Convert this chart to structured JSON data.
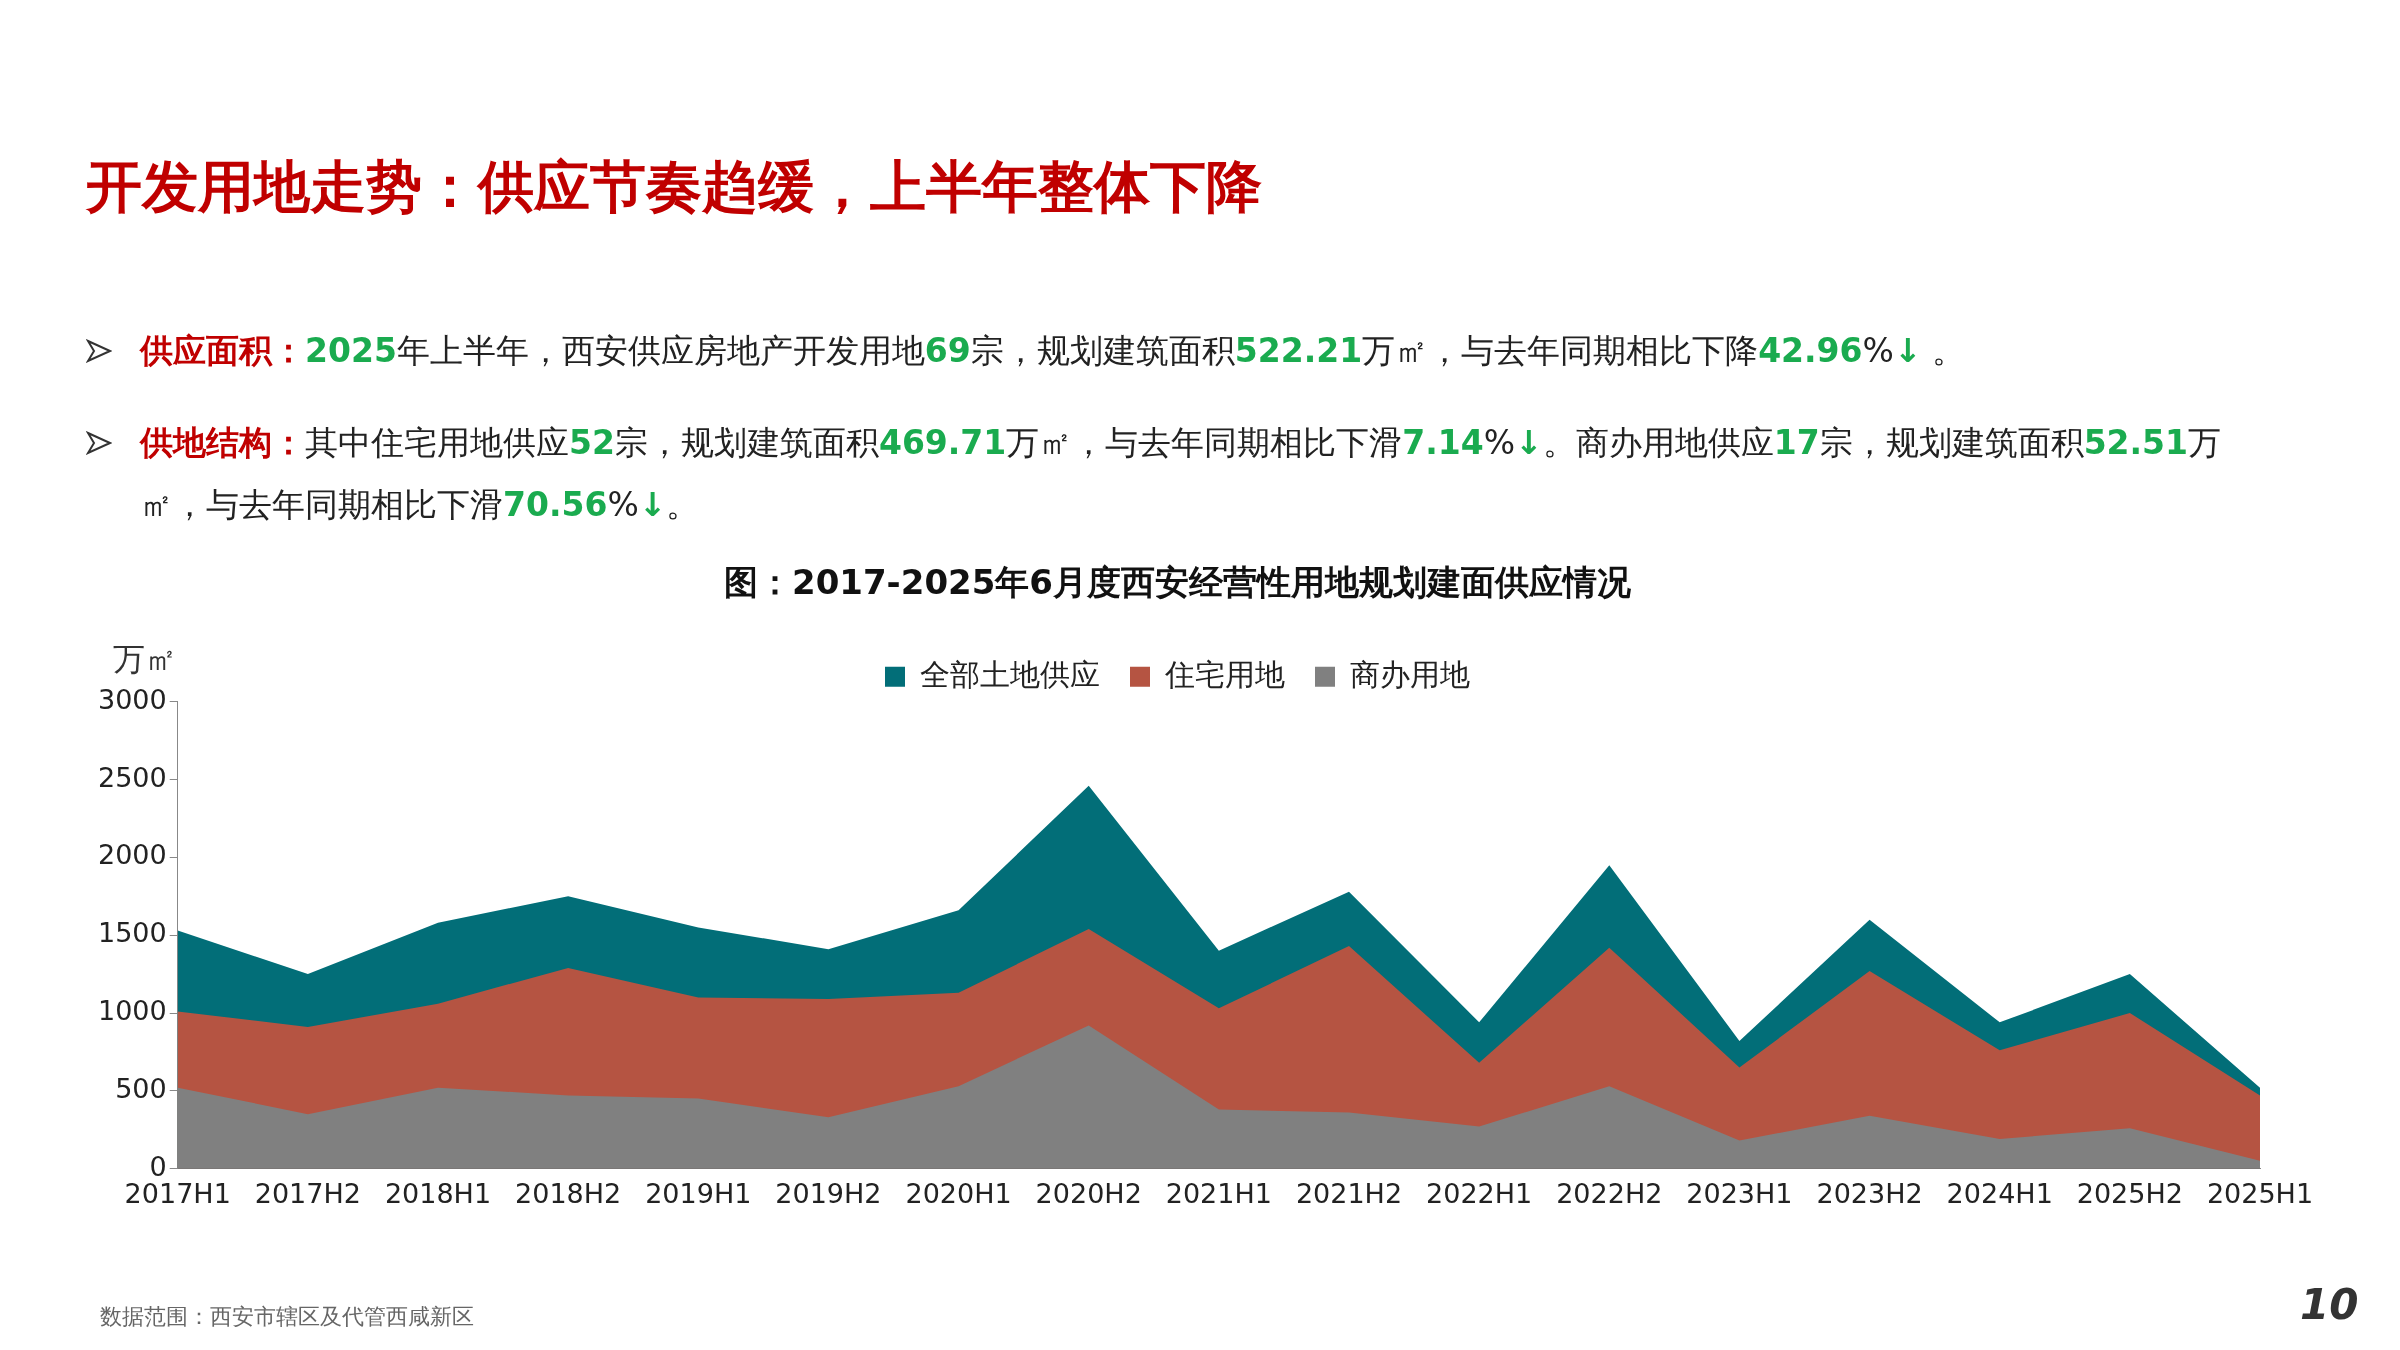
{
  "chart_data": {
    "type": "area",
    "title": "开发用地走势：供应节奏趋缓，上半年整体下降",
    "subtitle": "图：2017-2025年6月度西安经营性用地规划建面供应情况",
    "ylabel": "万㎡",
    "categories": [
      "2017H1",
      "2017H2",
      "2018H1",
      "2018H2",
      "2019H1",
      "2019H2",
      "2020H1",
      "2020H2",
      "2021H1",
      "2021H2",
      "2022H1",
      "2022H2",
      "2023H1",
      "2023H2",
      "2024H1",
      "2025H2",
      "2025H1"
    ],
    "series": [
      {
        "name": "全部土地供应",
        "color": "#026e78",
        "values": [
          1530,
          1250,
          1580,
          1750,
          1550,
          1410,
          1660,
          2460,
          1400,
          1780,
          940,
          1950,
          820,
          1600,
          940,
          1250,
          520
        ]
      },
      {
        "name": "住宅用地",
        "color": "#b55442",
        "values": [
          1010,
          910,
          1060,
          1290,
          1100,
          1090,
          1130,
          1540,
          1030,
          1430,
          680,
          1420,
          650,
          1270,
          760,
          1000,
          470
        ]
      },
      {
        "name": "商办用地",
        "color": "#808080",
        "values": [
          520,
          350,
          520,
          470,
          450,
          330,
          530,
          920,
          380,
          360,
          270,
          530,
          180,
          340,
          190,
          260,
          50
        ]
      }
    ],
    "ylim": [
      0,
      3000
    ],
    "yticks": [
      0,
      500,
      1000,
      1500,
      2000,
      2500,
      3000
    ],
    "grid": false,
    "legend": "top",
    "marker": "none",
    "annotations": [
      "供应面积：2025年上半年，西安供应房地产开发用地69宗，规划建筑面积522.21万㎡，与去年同期相比下降42.96%↓ 。",
      "供地结构：其中住宅用地供应52宗，规划建筑面积469.71万㎡，与去年同期相比下滑7.14%↓。商办用地供应17宗，规划建筑面积52.51万㎡，与去年同期相比下滑70.56%↓。",
      "数据范围：西安市辖区及代管西咸新区",
      "10"
    ]
  }
}
